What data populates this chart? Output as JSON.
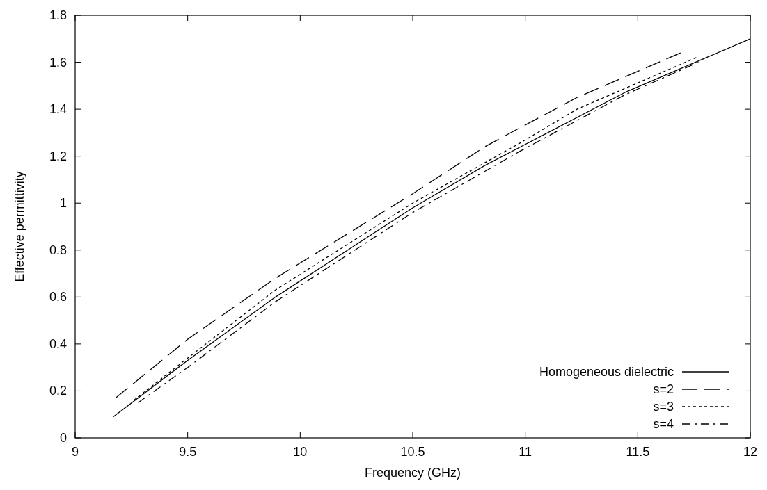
{
  "chart_data": {
    "type": "line",
    "xlabel": "Frequency (GHz)",
    "ylabel": "Effective permittivity",
    "xlim": [
      9,
      12
    ],
    "xticks": [
      9,
      9.5,
      10,
      10.5,
      11,
      11.5,
      12
    ],
    "ylim": [
      0,
      1.8
    ],
    "yticks": [
      0,
      0.2,
      0.4,
      0.6,
      0.8,
      1,
      1.2,
      1.4,
      1.6,
      1.8
    ],
    "grid": false,
    "legend": "bottom right",
    "marker": "none",
    "series": [
      {
        "name": "Homogeneous dielectric",
        "color": "#000000",
        "line_style": "solid",
        "x": [
          9.17,
          9.5,
          9.89,
          10.5,
          10.82,
          11,
          11.44,
          12
        ],
        "values": [
          0.09,
          0.33,
          0.6,
          0.98,
          1.16,
          1.25,
          1.47,
          1.7
        ]
      },
      {
        "name": "s=2",
        "color": "#000000",
        "line_style": "dashed",
        "x": [
          9.18,
          9.5,
          9.89,
          10.5,
          10.82,
          10.975,
          11.23,
          11.69
        ],
        "values": [
          0.17,
          0.42,
          0.68,
          1.04,
          1.24,
          1.32,
          1.45,
          1.64
        ]
      },
      {
        "name": "s=3",
        "color": "#000000",
        "line_style": "dotted",
        "x": [
          9.26,
          9.5,
          9.89,
          10.5,
          10.975,
          11.23,
          11.76
        ],
        "values": [
          0.16,
          0.34,
          0.63,
          1.0,
          1.255,
          1.4,
          1.62
        ]
      },
      {
        "name": "s=4",
        "color": "#000000",
        "line_style": "dashdot",
        "x": [
          9.28,
          9.5,
          9.89,
          10.5,
          10.975,
          11.44,
          11.77
        ],
        "values": [
          0.15,
          0.3,
          0.58,
          0.96,
          1.22,
          1.46,
          1.6
        ]
      }
    ]
  }
}
